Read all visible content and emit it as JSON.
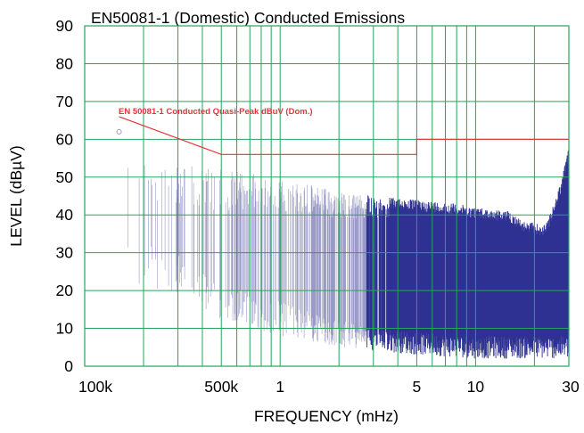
{
  "chart_data": {
    "type": "line",
    "title": "EN50081-1 (Domestic) Conducted Emissions",
    "xlabel": "FREQUENCY (mHz)",
    "ylabel": "LEVEL (dBµV)",
    "x_scale": "log",
    "xlim_mhz": [
      0.1,
      30
    ],
    "ylim": [
      0,
      90
    ],
    "grid": true,
    "y_ticks": [
      "0",
      "10",
      "20",
      "30",
      "40",
      "50",
      "60",
      "70",
      "80",
      "90"
    ],
    "x_tick_labels": [
      {
        "value": 0.1,
        "label": "100k"
      },
      {
        "value": 0.5,
        "label": "500k"
      },
      {
        "value": 1,
        "label": "1"
      },
      {
        "value": 5,
        "label": "5"
      },
      {
        "value": 10,
        "label": "10"
      },
      {
        "value": 30,
        "label": "30"
      }
    ],
    "limit": {
      "name": "EN 50081-1 Conducted Quasi-Peak  dBuV  (Dom.)",
      "color": "#e8323c",
      "points": [
        [
          0.15,
          66
        ],
        [
          0.5,
          56
        ],
        [
          5,
          56
        ],
        [
          5,
          60
        ],
        [
          30,
          60
        ]
      ]
    },
    "emission": {
      "color_light": "#9a9ac8",
      "color_dark": "#2e3192",
      "peak_start": [
        0.15,
        62
      ],
      "envelope": [
        [
          0.15,
          60
        ],
        [
          0.2,
          57
        ],
        [
          0.3,
          54
        ],
        [
          0.5,
          52
        ],
        [
          1,
          50
        ],
        [
          2,
          46
        ],
        [
          3,
          45
        ],
        [
          5,
          44
        ],
        [
          8,
          43
        ],
        [
          10,
          42
        ],
        [
          15,
          41
        ],
        [
          18,
          38
        ],
        [
          20,
          38
        ],
        [
          22,
          37
        ],
        [
          24,
          40
        ],
        [
          26,
          45
        ],
        [
          28,
          51
        ],
        [
          30,
          58
        ]
      ],
      "floor": [
        [
          0.15,
          22
        ],
        [
          0.3,
          18
        ],
        [
          0.5,
          12
        ],
        [
          1,
          8
        ],
        [
          2,
          5
        ],
        [
          5,
          3
        ],
        [
          10,
          2
        ],
        [
          30,
          2
        ]
      ]
    }
  }
}
